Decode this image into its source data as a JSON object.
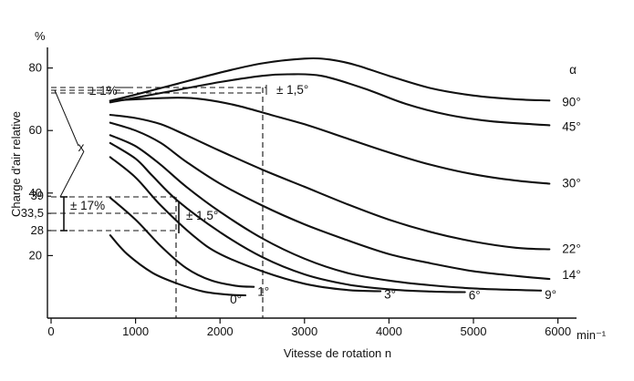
{
  "chart_data": {
    "type": "line",
    "title": "",
    "xlabel": "Vitesse de rotation n",
    "ylabel": "Charge d'air relative",
    "x_unit": "min⁻¹",
    "y_unit": "%",
    "xlim": [
      0,
      6300
    ],
    "ylim": [
      0,
      88
    ],
    "x_ticks": [
      "0",
      "1000",
      "2000",
      "3000",
      "4000",
      "5000",
      "6000"
    ],
    "y_ticks": [
      "20",
      "40",
      "60",
      "80"
    ],
    "y_extra_ticks": [
      "39",
      "33,5",
      "28"
    ],
    "legend_title": "α",
    "grid": false,
    "series": [
      {
        "name": "90°",
        "x": [
          700,
          1000,
          1500,
          2000,
          2500,
          3000,
          3300,
          3600,
          4000,
          4500,
          5000,
          5500,
          5900
        ],
        "y": [
          69.5,
          71.5,
          75,
          78.5,
          81.5,
          83,
          82.7,
          81,
          77.5,
          73.5,
          71.2,
          70,
          69.6
        ]
      },
      {
        "name": "45°",
        "x": [
          700,
          1000,
          1500,
          2000,
          2500,
          2800,
          3200,
          3700,
          4200,
          4700,
          5200,
          5700,
          5900
        ],
        "y": [
          69,
          70.5,
          73,
          75.5,
          77.5,
          78,
          77.5,
          73.5,
          68.5,
          65,
          63,
          62,
          61.7
        ]
      },
      {
        "name": "30°",
        "x": [
          700,
          1000,
          1500,
          1800,
          2200,
          2600,
          3000,
          3500,
          4000,
          4500,
          5000,
          5500,
          5900
        ],
        "y": [
          69.5,
          70,
          70.5,
          70,
          68,
          65,
          62,
          57.5,
          53,
          49,
          46,
          44,
          43
        ]
      },
      {
        "name": "22°",
        "x": [
          700,
          1000,
          1300,
          1600,
          2000,
          2500,
          3000,
          3500,
          4000,
          4500,
          5000,
          5500,
          5900
        ],
        "y": [
          65,
          64,
          62,
          58.5,
          53.5,
          47.5,
          42,
          36.5,
          31.5,
          27.5,
          24.5,
          22.5,
          22
        ]
      },
      {
        "name": "14°",
        "x": [
          700,
          1000,
          1300,
          1600,
          2000,
          2500,
          3000,
          3500,
          4000,
          4500,
          5000,
          5500,
          5900
        ],
        "y": [
          62.5,
          60,
          56,
          50,
          43,
          36,
          30,
          25,
          20.5,
          17.5,
          15,
          13.5,
          12.5
        ]
      },
      {
        "name": "9°",
        "x": [
          700,
          1000,
          1300,
          1600,
          2000,
          2500,
          3000,
          3500,
          4000,
          4500,
          5000,
          5500,
          5800
        ],
        "y": [
          58.5,
          55,
          49,
          42,
          34,
          25.5,
          19,
          14.5,
          12,
          10.5,
          9.5,
          9,
          8.8
        ]
      },
      {
        "name": "6°",
        "x": [
          700,
          1000,
          1200,
          1500,
          2000,
          2500,
          3000,
          3500,
          4000,
          4500,
          4900
        ],
        "y": [
          56,
          51,
          45.5,
          37.5,
          27.5,
          19.5,
          14,
          10.8,
          9.2,
          8.5,
          8.3
        ]
      },
      {
        "name": "3°",
        "x": [
          700,
          1000,
          1300,
          1700,
          2000,
          2500,
          3000,
          3500,
          3900
        ],
        "y": [
          51.5,
          45,
          36,
          26,
          20.5,
          15,
          11,
          9,
          8.6
        ]
      },
      {
        "name": "1°",
        "x": [
          700,
          1000,
          1300,
          1600,
          1900,
          2200,
          2400
        ],
        "y": [
          38.5,
          31.5,
          23,
          16,
          12,
          10.3,
          10
        ]
      },
      {
        "name": "0°",
        "x": [
          700,
          900,
          1200,
          1500,
          1800,
          2100,
          2300
        ],
        "y": [
          26.5,
          20.5,
          14.5,
          11,
          8.5,
          7.5,
          7.3
        ]
      }
    ],
    "annotations": [
      "± 1%",
      "± 1,5°",
      "± 17%",
      "± 1,5°",
      "x"
    ]
  }
}
